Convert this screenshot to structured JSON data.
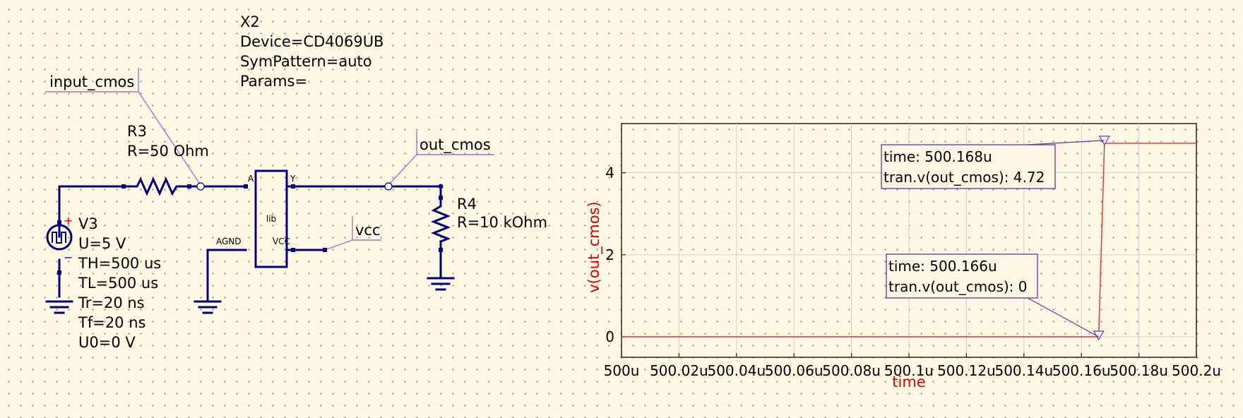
{
  "schematic": {
    "x2": {
      "name": "X2",
      "device": "Device=CD4069UB",
      "sympattern": "SymPattern=auto",
      "params": "Params=",
      "body_label": "lib",
      "pins": {
        "a": "A",
        "y": "Y",
        "agnd": "AGND",
        "vcc": "VCC"
      }
    },
    "labels": {
      "input": "input_cmos",
      "output": "out_cmos",
      "supply": "vcc"
    },
    "r3": {
      "name": "R3",
      "value": "R=50 Ohm"
    },
    "r4": {
      "name": "R4",
      "value": "R=10 kOhm"
    },
    "v3": {
      "name": "V3",
      "params": [
        "U=5 V",
        "TH=500 us",
        "TL=500 us",
        "Tr=20 ns",
        "Tf=20 ns",
        "U0=0 V"
      ],
      "plus": "+",
      "minus": "−"
    }
  },
  "chart_data": {
    "type": "line",
    "xlabel": "time",
    "ylabel": "v(out_cmos)",
    "xlim": [
      500.0,
      500.2
    ],
    "ylim": [
      -0.5,
      5.2
    ],
    "x_tick_values": [
      500.0,
      500.02,
      500.04,
      500.06,
      500.08,
      500.1,
      500.12,
      500.14,
      500.16,
      500.18,
      500.2
    ],
    "x_tick_labels": [
      "500u",
      "500.02u",
      "500.04u",
      "500.06u",
      "500.08u",
      "500.1u",
      "500.12u",
      "500.14u",
      "500.16u",
      "500.18u",
      "500.2u"
    ],
    "y_tick_values": [
      0,
      2,
      4
    ],
    "y_tick_labels": [
      "0",
      "2",
      "4"
    ],
    "grid": true,
    "series": [
      {
        "name": "tran.v(out_cmos)",
        "color": "#e03030",
        "x": [
          500.0,
          500.166,
          500.168,
          500.2
        ],
        "y": [
          0,
          0,
          4.72,
          4.72
        ]
      }
    ],
    "markers": [
      {
        "x": 500.168,
        "y": 4.72,
        "lines": [
          "time: 500.168u",
          "tran.v(out_cmos): 4.72"
        ]
      },
      {
        "x": 500.166,
        "y": 0,
        "lines": [
          "time: 500.166u",
          "tran.v(out_cmos): 0"
        ]
      }
    ]
  }
}
